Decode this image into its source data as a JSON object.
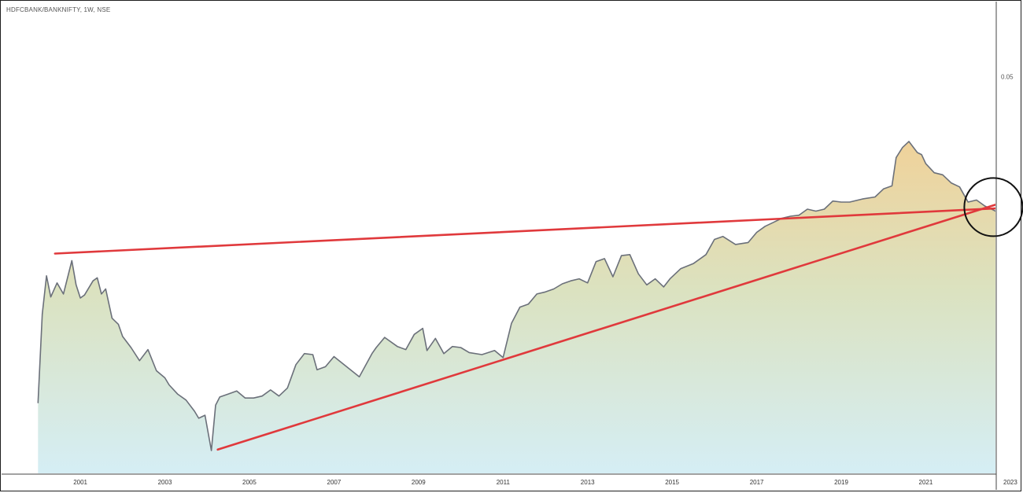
{
  "header": {
    "title": "HDFCBANK/BANKNIFTY, 1W, NSE"
  },
  "chart_data": {
    "type": "area",
    "title": "HDFCBANK/BANKNIFTY, 1W, NSE",
    "xlabel": "",
    "ylabel": "",
    "x_range": [
      1999.1,
      2023.3
    ],
    "ylim": [
      0.0088,
      0.0576
    ],
    "x_ticks": [
      "2001",
      "2003",
      "2005",
      "2007",
      "2009",
      "2011",
      "2013",
      "2015",
      "2017",
      "2019",
      "2021",
      "2023"
    ],
    "y_ticks": [
      {
        "value": 0.05,
        "label": "0.05"
      }
    ],
    "grid": false,
    "legend": "none",
    "colors": {
      "line": "#6b707a",
      "fill_top": "#f0d29a",
      "fill_bottom": "#d5eef5",
      "trendline": "#e0393c"
    },
    "series": [
      {
        "x": [
          2000.0,
          2000.1,
          2000.2,
          2000.3,
          2000.45,
          2000.6,
          2000.8,
          2000.9,
          2001.0,
          2001.1,
          2001.3,
          2001.4,
          2001.5,
          2001.6,
          2001.75,
          2001.9,
          2002.0,
          2002.2,
          2002.4,
          2002.6,
          2002.8,
          2003.0,
          2003.1,
          2003.3,
          2003.5,
          2003.7,
          2003.8,
          2003.95,
          2004.1,
          2004.2,
          2004.3,
          2004.5,
          2004.7,
          2004.9,
          2005.1,
          2005.3,
          2005.5,
          2005.7,
          2005.9,
          2006.1,
          2006.3,
          2006.5,
          2006.6,
          2006.8,
          2007.0,
          2007.3,
          2007.6,
          2007.9,
          2008.0,
          2008.2,
          2008.5,
          2008.7,
          2008.9,
          2009.1,
          2009.2,
          2009.4,
          2009.6,
          2009.8,
          2010.0,
          2010.2,
          2010.5,
          2010.8,
          2011.0,
          2011.2,
          2011.4,
          2011.6,
          2011.8,
          2012.0,
          2012.2,
          2012.4,
          2012.6,
          2012.8,
          2013.0,
          2013.2,
          2013.4,
          2013.6,
          2013.8,
          2014.0,
          2014.2,
          2014.4,
          2014.6,
          2014.8,
          2014.95,
          2015.2,
          2015.5,
          2015.8,
          2016.0,
          2016.2,
          2016.5,
          2016.8,
          2017.0,
          2017.2,
          2017.4,
          2017.6,
          2017.8,
          2018.0,
          2018.2,
          2018.4,
          2018.6,
          2018.8,
          2019.0,
          2019.2,
          2019.5,
          2019.8,
          2020.0,
          2020.2,
          2020.3,
          2020.45,
          2020.6,
          2020.8,
          2020.9,
          2021.0,
          2021.2,
          2021.4,
          2021.6,
          2021.8,
          2022.0,
          2022.2,
          2022.4,
          2022.6,
          2022.75,
          2022.85,
          2022.95
        ],
        "y": [
          0.0177,
          0.0265,
          0.0303,
          0.0282,
          0.0296,
          0.0285,
          0.0318,
          0.0294,
          0.0281,
          0.0284,
          0.0298,
          0.0301,
          0.0285,
          0.029,
          0.0261,
          0.0255,
          0.0243,
          0.0232,
          0.0219,
          0.023,
          0.0209,
          0.0202,
          0.0195,
          0.0186,
          0.018,
          0.0169,
          0.0162,
          0.0165,
          0.013,
          0.0175,
          0.0183,
          0.0186,
          0.0189,
          0.0182,
          0.0182,
          0.0184,
          0.019,
          0.0184,
          0.0192,
          0.0215,
          0.0226,
          0.0225,
          0.021,
          0.0213,
          0.0223,
          0.0213,
          0.0203,
          0.0226,
          0.0232,
          0.0242,
          0.0233,
          0.023,
          0.0245,
          0.0251,
          0.0229,
          0.0241,
          0.0226,
          0.0233,
          0.0232,
          0.0227,
          0.0225,
          0.0229,
          0.0222,
          0.0256,
          0.0272,
          0.0275,
          0.0285,
          0.0287,
          0.029,
          0.0295,
          0.0298,
          0.03,
          0.0296,
          0.0317,
          0.032,
          0.0302,
          0.0323,
          0.0324,
          0.0305,
          0.0294,
          0.03,
          0.0292,
          0.03,
          0.031,
          0.0315,
          0.0324,
          0.0339,
          0.0342,
          0.0334,
          0.0336,
          0.0346,
          0.0352,
          0.0356,
          0.036,
          0.0362,
          0.0363,
          0.0369,
          0.0367,
          0.0369,
          0.0377,
          0.0376,
          0.0376,
          0.0379,
          0.0381,
          0.0389,
          0.0392,
          0.042,
          0.043,
          0.0436,
          0.0425,
          0.0423,
          0.0414,
          0.0405,
          0.0403,
          0.0395,
          0.0391,
          0.0376,
          0.0378,
          0.0372,
          0.0368,
          0.0365,
          0.0355,
          0.036
        ]
      }
    ],
    "trendlines": [
      {
        "x": [
          2000.4,
          2023.3
        ],
        "y": [
          0.0325,
          0.0371
        ]
      },
      {
        "x": [
          2004.25,
          2023.3
        ],
        "y": [
          0.0131,
          0.0382
        ]
      }
    ],
    "annotations": [
      {
        "type": "circle",
        "x": 2022.6,
        "y": 0.0371
      }
    ]
  }
}
